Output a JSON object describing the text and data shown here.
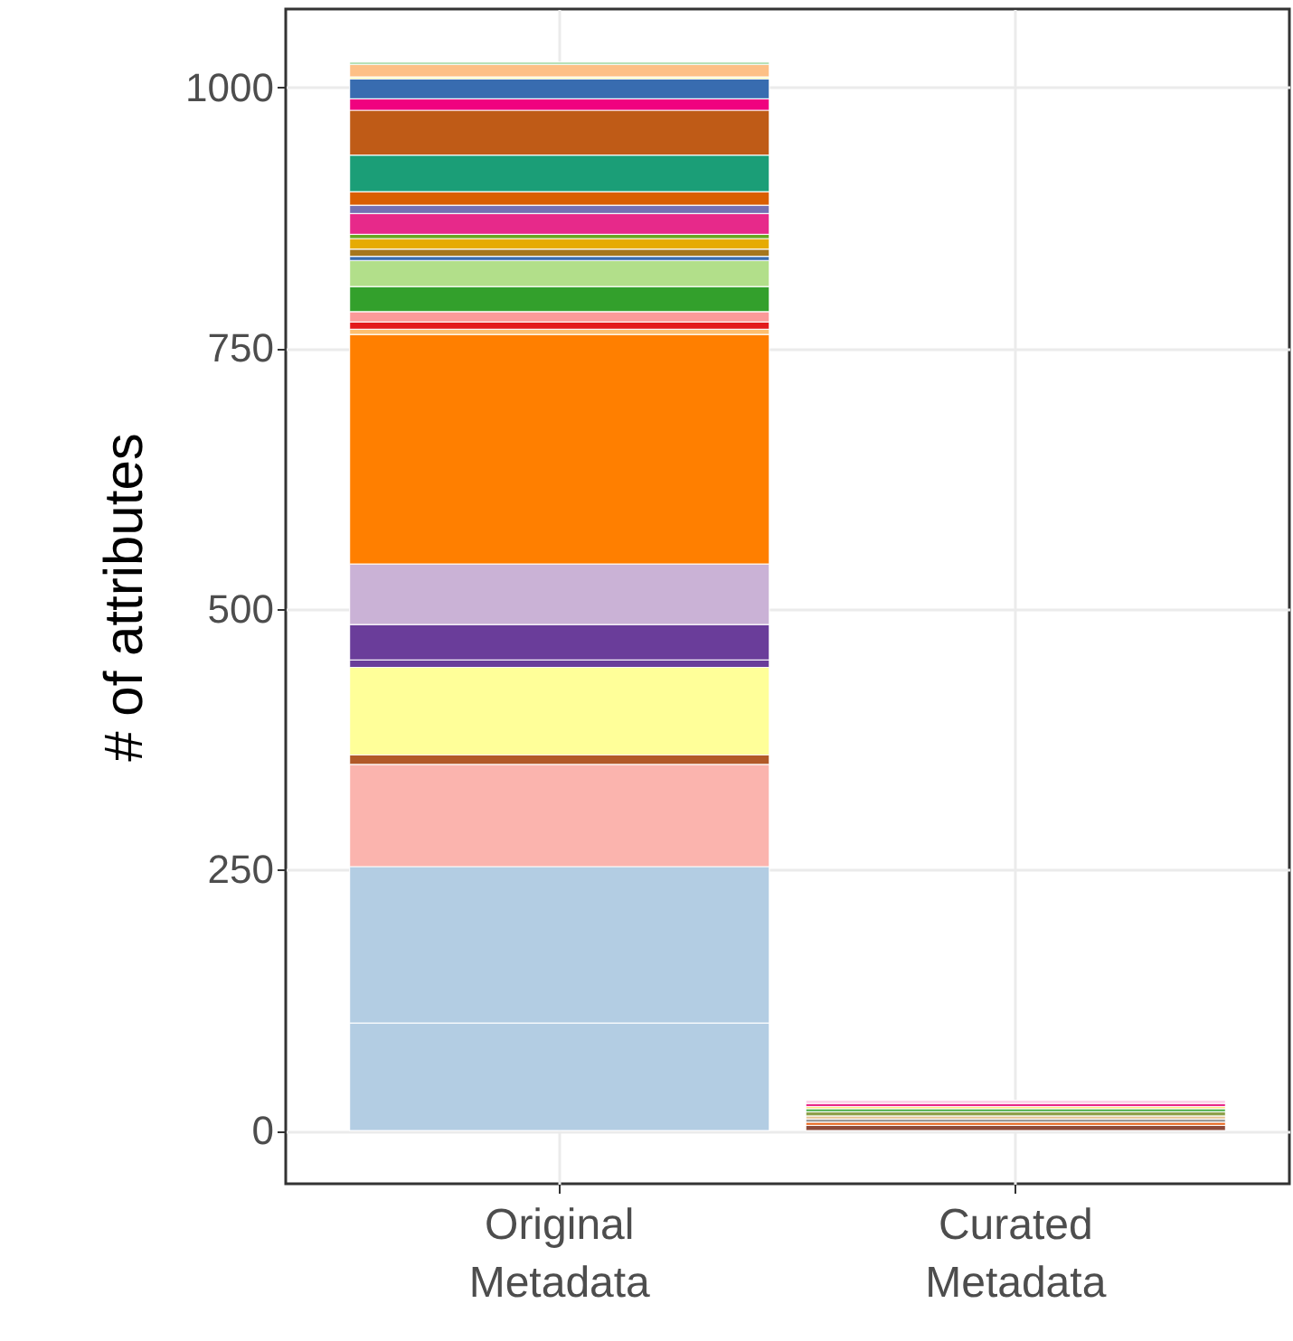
{
  "chart_data": {
    "type": "bar",
    "stacked": true,
    "ylabel": "# of attributes",
    "categories": [
      "Original\nMetadata",
      "Curated\nMetadata"
    ],
    "ylim": [
      -51,
      1075
    ],
    "yticks": [
      0,
      250,
      500,
      750,
      1000
    ],
    "grid": true,
    "series": [
      {
        "color": "#b3cde3",
        "values": [
          103,
          null
        ]
      },
      {
        "color": "#b3cde3",
        "values": [
          150,
          null
        ]
      },
      {
        "color": "#fbb4ae",
        "values": [
          98,
          null
        ]
      },
      {
        "color": "#b15928",
        "values": [
          9,
          null
        ]
      },
      {
        "color": "#ffff99",
        "values": [
          84,
          null
        ]
      },
      {
        "color": "#6a3d9a",
        "values": [
          7,
          null
        ]
      },
      {
        "color": "#6a3d9a",
        "values": [
          34,
          null
        ]
      },
      {
        "color": "#cab2d6",
        "values": [
          58,
          null
        ]
      },
      {
        "color": "#ff7f00",
        "values": [
          220,
          null
        ]
      },
      {
        "color": "#fdbf6f",
        "values": [
          5,
          null
        ]
      },
      {
        "color": "#e31a1c",
        "values": [
          7,
          null
        ]
      },
      {
        "color": "#fb9a99",
        "values": [
          10,
          null
        ]
      },
      {
        "color": "#33a02c",
        "values": [
          24,
          null
        ]
      },
      {
        "color": "#b2df8a",
        "values": [
          25,
          null
        ]
      },
      {
        "color": "#386cb0",
        "values": [
          4,
          null
        ]
      },
      {
        "color": "#a6761d",
        "values": [
          7,
          null
        ]
      },
      {
        "color": "#e6ab02",
        "values": [
          10,
          null
        ]
      },
      {
        "color": "#66a61e",
        "values": [
          4,
          null
        ]
      },
      {
        "color": "#e7298a",
        "values": [
          20,
          null
        ]
      },
      {
        "color": "#7570b3",
        "values": [
          8,
          null
        ]
      },
      {
        "color": "#d95f02",
        "values": [
          13,
          null
        ]
      },
      {
        "color": "#1b9e77",
        "values": [
          35,
          null
        ]
      },
      {
        "color": "#bf5b17",
        "values": [
          43,
          null
        ]
      },
      {
        "color": "#f0027f",
        "values": [
          11,
          null
        ]
      },
      {
        "color": "#386cb0",
        "values": [
          19,
          null
        ]
      },
      {
        "color": "#ffff99",
        "values": [
          2,
          null
        ]
      },
      {
        "color": "#fdc086",
        "values": [
          12,
          null
        ]
      },
      {
        "color": "#7fc97f",
        "values": [
          2,
          null
        ]
      },
      {
        "color": "#8c4a3a",
        "values": [
          null,
          5
        ]
      },
      {
        "color": "#e8641a",
        "values": [
          null,
          3
        ]
      },
      {
        "color": "#999999",
        "values": [
          null,
          3
        ]
      },
      {
        "color": "#e5c494",
        "values": [
          null,
          3
        ]
      },
      {
        "color": "#8da04a",
        "values": [
          null,
          4
        ]
      },
      {
        "color": "#4daf4a",
        "values": [
          null,
          3
        ]
      },
      {
        "color": "#ffd92f",
        "values": [
          null,
          2
        ]
      },
      {
        "color": "#e7298a",
        "values": [
          null,
          3
        ]
      },
      {
        "color": "#fccde5",
        "values": [
          null,
          3
        ]
      }
    ]
  }
}
